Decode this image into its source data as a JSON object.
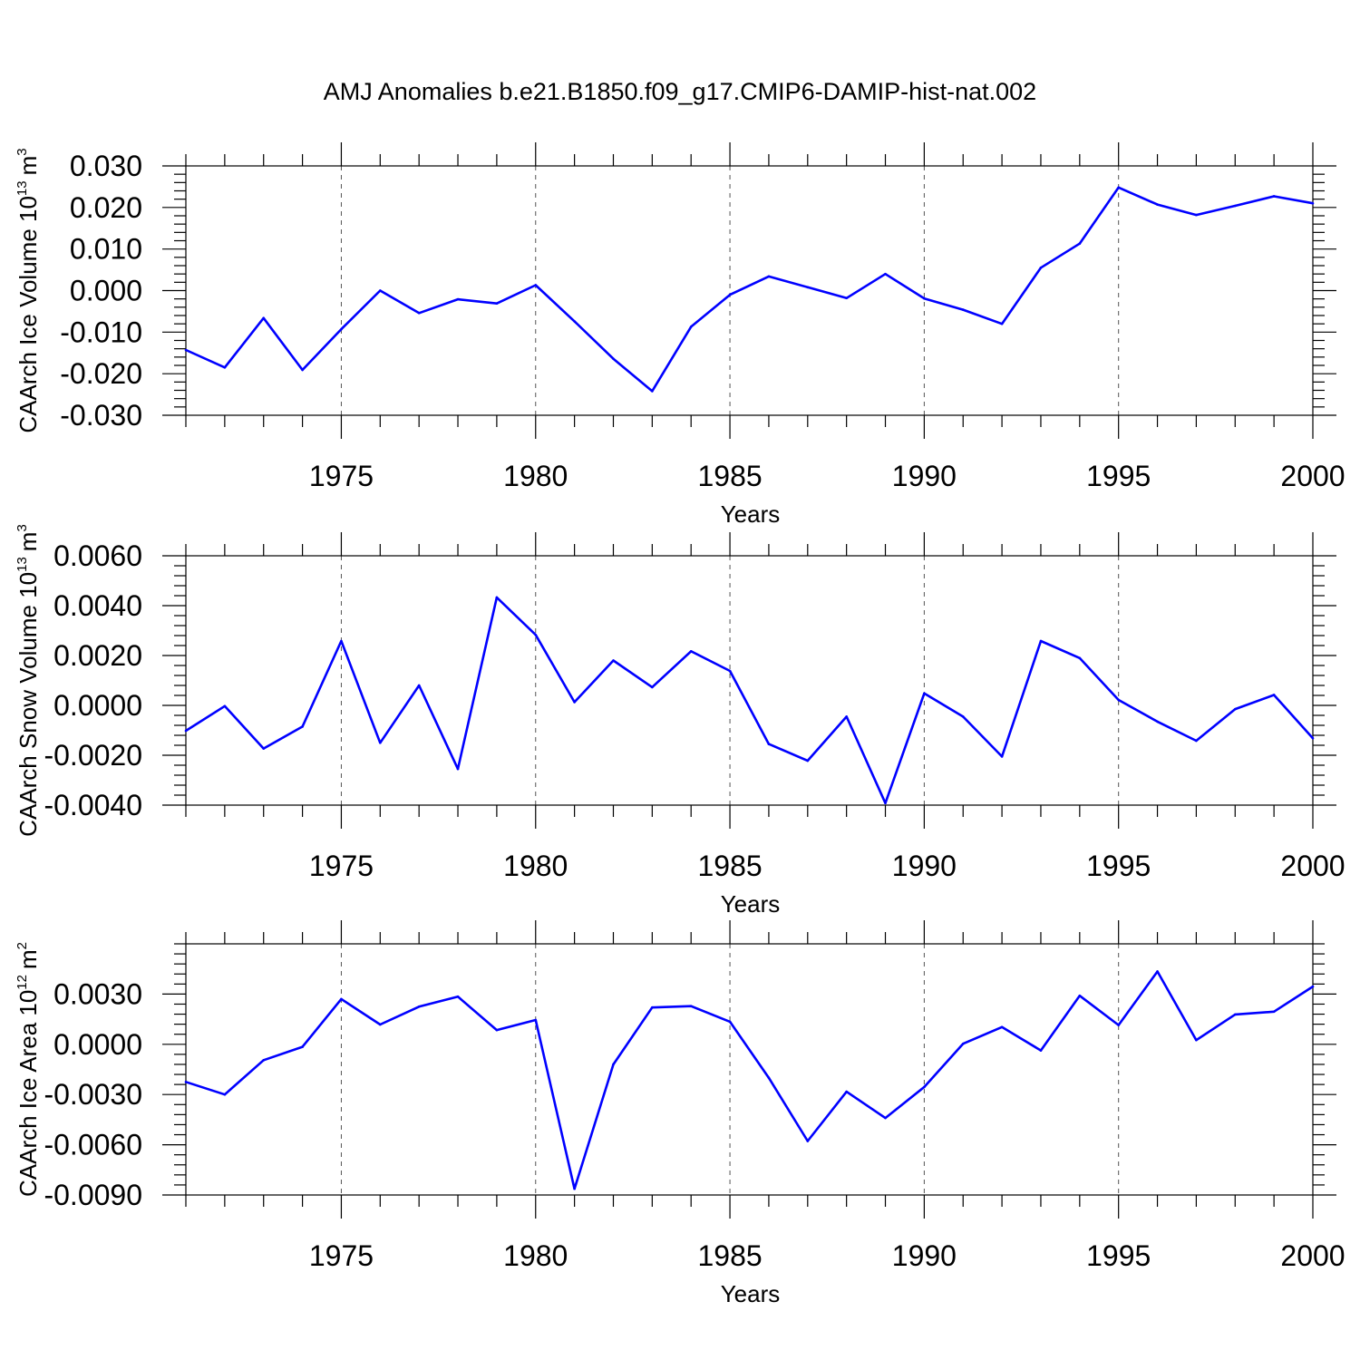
{
  "title": "AMJ Anomalies b.e21.B1850.f09_g17.CMIP6-DAMIP-hist-nat.002",
  "line_color": "#0000ff",
  "chart_data": [
    {
      "type": "line",
      "xlabel": "Years",
      "ylabel": "CAArch Ice Volume 10",
      "ylabel_exponent": "13",
      "ylabel_unit": "m",
      "ylabel_unit_exponent": "3",
      "xlim": [
        1971,
        2000
      ],
      "ylim": [
        -0.03,
        0.03
      ],
      "xticks": [
        1975,
        1980,
        1985,
        1990,
        1995,
        2000
      ],
      "yticks": [
        -0.03,
        -0.02,
        -0.01,
        0.0,
        0.01,
        0.02,
        0.03
      ],
      "ytick_labels": [
        "-0.030",
        "-0.020",
        "-0.010",
        "0.000",
        "0.010",
        "0.020",
        "0.030"
      ],
      "grid": "dashed vertical at major x ticks",
      "x": [
        1971,
        1972,
        1973,
        1974,
        1975,
        1976,
        1977,
        1978,
        1979,
        1980,
        1981,
        1982,
        1983,
        1984,
        1985,
        1986,
        1987,
        1988,
        1989,
        1990,
        1991,
        1992,
        1993,
        1994,
        1995,
        1996,
        1997,
        1998,
        1999,
        2000
      ],
      "values": [
        -0.0143,
        -0.0185,
        -0.0066,
        -0.0191,
        -0.0093,
        0.0,
        -0.0054,
        -0.0021,
        -0.0031,
        0.0013,
        -0.0074,
        -0.0164,
        -0.0242,
        -0.0087,
        -0.001,
        0.0034,
        0.0008,
        -0.0018,
        0.004,
        -0.0019,
        -0.0046,
        -0.008,
        0.0055,
        0.0113,
        0.0248,
        0.0207,
        0.0182,
        0.0204,
        0.0227,
        0.021
      ]
    },
    {
      "type": "line",
      "xlabel": "Years",
      "ylabel": "CAArch Snow Volume 10",
      "ylabel_exponent": "13",
      "ylabel_unit": "m",
      "ylabel_unit_exponent": "3",
      "xlim": [
        1971,
        2000
      ],
      "ylim": [
        -0.004,
        0.006
      ],
      "xticks": [
        1975,
        1980,
        1985,
        1990,
        1995,
        2000
      ],
      "yticks": [
        -0.004,
        -0.002,
        0.0,
        0.002,
        0.004,
        0.006
      ],
      "ytick_labels": [
        "-0.0040",
        "-0.0020",
        "0.0000",
        "0.0020",
        "0.0040",
        "0.0060"
      ],
      "grid": "dashed vertical at major x ticks",
      "x": [
        1971,
        1972,
        1973,
        1974,
        1975,
        1976,
        1977,
        1978,
        1979,
        1980,
        1981,
        1982,
        1983,
        1984,
        1985,
        1986,
        1987,
        1988,
        1989,
        1990,
        1991,
        1992,
        1993,
        1994,
        1995,
        1996,
        1997,
        1998,
        1999,
        2000
      ],
      "values": [
        -0.00102,
        -3e-05,
        -0.00173,
        -0.00085,
        0.00258,
        -0.0015,
        0.0008,
        -0.00255,
        0.00433,
        0.00283,
        0.00013,
        0.0018,
        0.00073,
        0.00217,
        0.00138,
        -0.00155,
        -0.00222,
        -0.00045,
        -0.00392,
        0.00048,
        -0.00045,
        -0.00205,
        0.00258,
        0.0019,
        0.00022,
        -0.00065,
        -0.00142,
        -0.00015,
        0.00042,
        -0.00132
      ]
    },
    {
      "type": "line",
      "xlabel": "Years",
      "ylabel": "CAArch Ice Area 10",
      "ylabel_exponent": "12",
      "ylabel_unit": "m",
      "ylabel_unit_exponent": "2",
      "xlim": [
        1971,
        2000
      ],
      "ylim": [
        -0.009,
        0.006
      ],
      "xticks": [
        1975,
        1980,
        1985,
        1990,
        1995,
        2000
      ],
      "yticks": [
        -0.009,
        -0.006,
        -0.003,
        0.0,
        0.003
      ],
      "ytick_labels": [
        "-0.0090",
        "-0.0060",
        "-0.0030",
        "0.0000",
        "0.0030"
      ],
      "grid": "dashed vertical at major x ticks",
      "x": [
        1971,
        1972,
        1973,
        1974,
        1975,
        1976,
        1977,
        1978,
        1979,
        1980,
        1981,
        1982,
        1983,
        1984,
        1985,
        1986,
        1987,
        1988,
        1989,
        1990,
        1991,
        1992,
        1993,
        1994,
        1995,
        1996,
        1997,
        1998,
        1999,
        2000
      ],
      "values": [
        -0.00225,
        -0.003,
        -0.00095,
        -0.00015,
        0.0027,
        0.00118,
        0.00225,
        0.00285,
        0.00085,
        0.00145,
        -0.00863,
        -0.0012,
        0.0022,
        0.00228,
        0.00135,
        -0.002,
        -0.00578,
        -0.00283,
        -0.0044,
        -0.00255,
        3e-05,
        0.00103,
        -0.00037,
        0.0029,
        0.00115,
        0.00435,
        0.00025,
        0.00178,
        0.00195,
        0.00345
      ]
    }
  ]
}
